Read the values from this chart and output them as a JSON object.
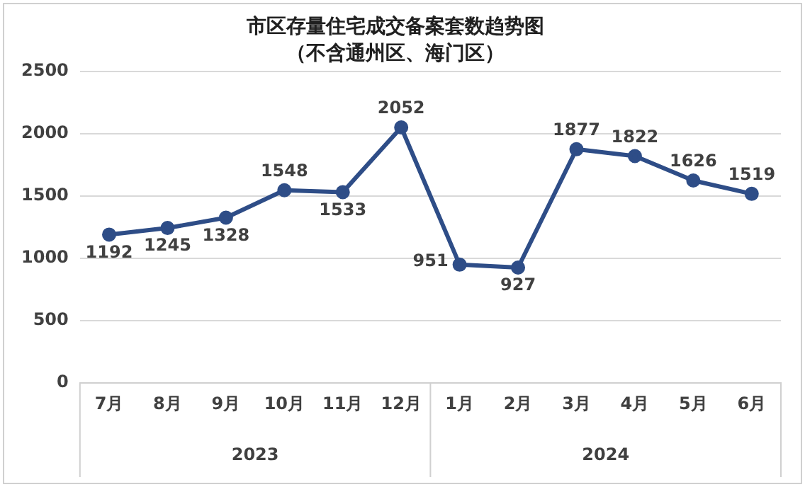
{
  "chart_data": {
    "type": "line",
    "title": "市区存量住宅成交备案套数趋势图",
    "subtitle": "（不含通州区、海门区）",
    "categories": [
      "7月",
      "8月",
      "9月",
      "10月",
      "11月",
      "12月",
      "1月",
      "2月",
      "3月",
      "4月",
      "5月",
      "6月"
    ],
    "values": [
      1192,
      1245,
      1328,
      1548,
      1533,
      2052,
      951,
      927,
      1877,
      1822,
      1626,
      1519
    ],
    "color": "#2e4d87",
    "ylim": [
      0,
      2500
    ],
    "yticks": [
      0,
      500,
      1000,
      1500,
      2000,
      2500
    ],
    "grid": "y",
    "marker": "circle",
    "line_style": "solid",
    "data_labels": true,
    "legend": false,
    "annotations": [
      "2023",
      "2024"
    ]
  }
}
